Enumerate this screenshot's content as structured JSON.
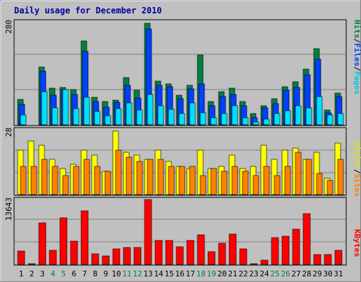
{
  "title": "Daily usage for December 2010",
  "panel_max_labels": {
    "hits": "280",
    "visits": "28",
    "kbytes": "13643"
  },
  "legend_top": {
    "pages": "Pages",
    "files": "Files",
    "hits": "Hits",
    "sep": "/"
  },
  "legend_mid": {
    "sites": "Sites",
    "visits": "Visits",
    "sep": "/"
  },
  "legend_bottom": {
    "kbytes": "KBytes"
  },
  "colors": {
    "background": "#c0c0c0",
    "title": "#0000a0",
    "hits": "#008040",
    "files": "#0040ff",
    "pages": "#00e0ff",
    "visits": "#ffff00",
    "sites": "#ff8000",
    "kbytes": "#ff0000",
    "weekend_label": "#008040"
  },
  "chart_data": [
    {
      "type": "bar",
      "title": "Daily usage for December 2010",
      "categories": [
        "1",
        "2",
        "3",
        "4",
        "5",
        "6",
        "7",
        "8",
        "9",
        "10",
        "11",
        "12",
        "13",
        "14",
        "15",
        "16",
        "17",
        "18",
        "19",
        "20",
        "21",
        "22",
        "23",
        "24",
        "25",
        "26",
        "27",
        "28",
        "29",
        "30",
        "31"
      ],
      "weekend_days": [
        "4",
        "5",
        "11",
        "12",
        "18",
        "19",
        "25",
        "26"
      ],
      "ylim": [
        0,
        280
      ],
      "series": [
        {
          "name": "Hits",
          "values": [
            68,
            0,
            155,
            98,
            100,
            95,
            226,
            73,
            62,
            66,
            126,
            92,
            272,
            118,
            110,
            80,
            106,
            188,
            62,
            88,
            98,
            62,
            30,
            52,
            70,
            102,
            116,
            150,
            204,
            40,
            86
          ]
        },
        {
          "name": "Files",
          "values": [
            54,
            0,
            144,
            80,
            95,
            82,
            196,
            62,
            48,
            60,
            105,
            72,
            258,
            105,
            102,
            70,
            96,
            110,
            52,
            76,
            82,
            52,
            18,
            46,
            56,
            92,
            100,
            135,
            176,
            32,
            76
          ]
        },
        {
          "name": "Pages",
          "values": [
            26,
            0,
            88,
            46,
            95,
            44,
            74,
            35,
            25,
            44,
            58,
            40,
            82,
            52,
            42,
            30,
            58,
            32,
            18,
            30,
            52,
            18,
            8,
            16,
            30,
            38,
            52,
            46,
            76,
            26,
            30
          ]
        }
      ]
    },
    {
      "type": "bar",
      "categories": [
        "1",
        "2",
        "3",
        "4",
        "5",
        "6",
        "7",
        "8",
        "9",
        "10",
        "11",
        "12",
        "13",
        "14",
        "15",
        "16",
        "17",
        "18",
        "19",
        "20",
        "21",
        "22",
        "23",
        "24",
        "25",
        "26",
        "27",
        "28",
        "29",
        "30",
        "31"
      ],
      "ylim": [
        0,
        28
      ],
      "series": [
        {
          "name": "Visits",
          "values": [
            19,
            23,
            21,
            15,
            11,
            13,
            19,
            17,
            10,
            27,
            18,
            17,
            15,
            19,
            14,
            12,
            11,
            19,
            11,
            12,
            17,
            11,
            12,
            21,
            15,
            19,
            20,
            15,
            18,
            7,
            22
          ]
        },
        {
          "name": "Sites",
          "values": [
            12,
            12,
            15,
            12,
            8,
            12,
            15,
            12,
            10,
            19,
            16,
            14,
            15,
            15,
            12,
            12,
            12,
            8,
            11,
            10,
            12,
            10,
            8,
            12,
            8,
            12,
            18,
            15,
            9,
            6,
            15
          ]
        }
      ]
    },
    {
      "type": "bar",
      "categories": [
        "1",
        "2",
        "3",
        "4",
        "5",
        "6",
        "7",
        "8",
        "9",
        "10",
        "11",
        "12",
        "13",
        "14",
        "15",
        "16",
        "17",
        "18",
        "19",
        "20",
        "21",
        "22",
        "23",
        "24",
        "25",
        "26",
        "27",
        "28",
        "29",
        "30",
        "31"
      ],
      "ylim": [
        0,
        13643
      ],
      "series": [
        {
          "name": "KBytes",
          "values": [
            2800,
            100,
            8700,
            3000,
            9800,
            4900,
            11300,
            2200,
            1800,
            3200,
            3600,
            3600,
            13643,
            5000,
            5000,
            3700,
            5100,
            6300,
            2600,
            4400,
            6400,
            3300,
            100,
            900,
            5600,
            6000,
            7400,
            10700,
            2100,
            2100,
            2900
          ]
        }
      ]
    }
  ]
}
